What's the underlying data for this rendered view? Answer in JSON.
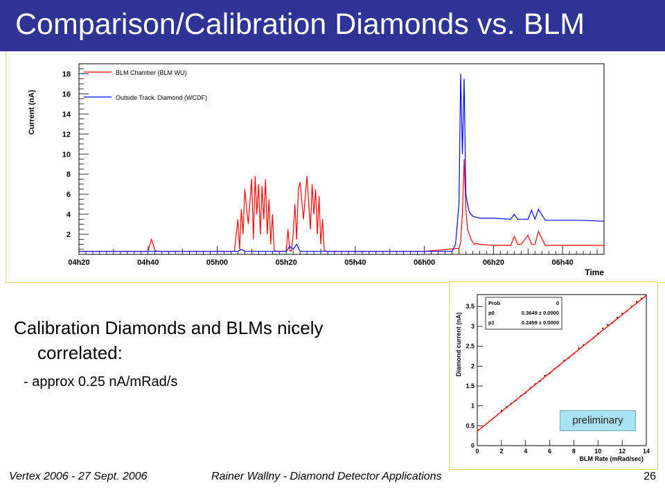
{
  "slide": {
    "title": "Comparison/Calibration Diamonds vs. BLM",
    "body_line1": "Calibration Diamonds and BLMs  nicely",
    "body_line2": "correlated:",
    "sub_item": "-  approx 0.25 nA/mRad/s",
    "preliminary_label": "preliminary",
    "footer_left": "Vertex 2006 - 27 Sept. 2006",
    "footer_center": "Rainer Wallny - Diamond Detector Applications",
    "page_number": "26"
  },
  "chart_data": [
    {
      "type": "line",
      "title": "",
      "xlabel": "Time",
      "ylabel": "Current (nA)",
      "x_ticks": [
        "04h20",
        "04h40",
        "05h00",
        "05h20",
        "05h40",
        "06h00",
        "06h20",
        "06h40"
      ],
      "x_range_minutes": [
        260,
        412
      ],
      "ylim": [
        0,
        19
      ],
      "y_ticks": [
        2,
        4,
        6,
        8,
        10,
        12,
        14,
        16,
        18
      ],
      "legend_position": "top-left",
      "series": [
        {
          "name": "BLM Chamber (BLM WU)",
          "color": "#ff0000",
          "x_minutes": [
            260,
            280,
            281,
            282,
            282.5,
            283,
            300,
            305,
            306,
            306.5,
            307,
            307.5,
            308,
            309,
            310,
            310.5,
            311,
            311.5,
            312,
            312.5,
            313,
            313.5,
            314,
            314.5,
            315,
            315.5,
            316,
            316.5,
            317,
            317.5,
            318,
            319,
            320,
            320.5,
            321,
            321.5,
            322,
            322.5,
            323,
            323.5,
            324,
            325,
            326,
            327,
            327.5,
            328,
            328.5,
            329,
            329.5,
            330,
            330.5,
            331,
            331.5,
            332,
            332.5,
            333,
            334,
            335,
            345,
            360,
            370,
            370.5,
            371,
            371.5,
            372,
            372.5,
            373,
            373.5,
            374,
            374.5,
            375,
            376,
            380,
            385,
            386,
            387,
            388,
            390,
            391,
            392,
            393,
            395,
            400,
            405,
            412
          ],
          "values": [
            0.3,
            0.3,
            1.5,
            0.4,
            0.3,
            0.3,
            0.3,
            0.3,
            3.5,
            0.5,
            4.5,
            2.0,
            6.5,
            3.0,
            7.5,
            1.5,
            7.8,
            4.0,
            7.0,
            2.0,
            6.8,
            3.5,
            7.5,
            2.0,
            5.5,
            1.0,
            4.0,
            0.5,
            0.3,
            0.3,
            0.3,
            0.3,
            0.3,
            2.5,
            0.4,
            0.3,
            2.0,
            5.0,
            1.5,
            6.5,
            7.2,
            3.5,
            7.8,
            2.5,
            7.0,
            4.0,
            6.5,
            2.0,
            5.8,
            1.0,
            3.5,
            0.4,
            0.3,
            0.3,
            0.3,
            0.3,
            0.3,
            0.3,
            0.3,
            0.3,
            0.6,
            1.2,
            4.0,
            9.5,
            4.5,
            2.5,
            2.0,
            1.5,
            1.2,
            1.0,
            1.1,
            1.0,
            0.9,
            0.9,
            1.8,
            1.0,
            1.0,
            1.9,
            1.0,
            1.0,
            2.3,
            0.9,
            0.9,
            0.9,
            0.9
          ]
        },
        {
          "name": "Outside Track. Diamond (WCDF)",
          "color": "#0000ff",
          "x_minutes": [
            260,
            280,
            300,
            306,
            307,
            308,
            310,
            320,
            321,
            322,
            323,
            324,
            330,
            350,
            368,
            369,
            370,
            370.5,
            371,
            371.5,
            372,
            372.5,
            373,
            373.5,
            374,
            375,
            376,
            378,
            380,
            385,
            386,
            387,
            390,
            391,
            392,
            393,
            395,
            400,
            405,
            412
          ],
          "values": [
            0.3,
            0.3,
            0.3,
            0.3,
            0.5,
            0.3,
            0.3,
            0.3,
            0.8,
            0.5,
            1.0,
            0.3,
            0.3,
            0.3,
            0.3,
            1.0,
            5.0,
            18.0,
            10.0,
            17.5,
            6.0,
            5.0,
            4.2,
            4.0,
            3.8,
            3.7,
            3.6,
            3.6,
            3.6,
            3.5,
            4.0,
            3.5,
            3.5,
            4.4,
            3.5,
            4.5,
            3.4,
            3.4,
            3.4,
            3.3
          ]
        }
      ]
    },
    {
      "type": "scatter",
      "title": "",
      "xlabel": "BLM Rate (mRad/sec)",
      "ylabel": "Diamond current (nA)",
      "xlim": [
        0,
        14
      ],
      "ylim": [
        0,
        3.8
      ],
      "x_ticks": [
        "0",
        "2",
        "4",
        "6",
        "8",
        "10",
        "12",
        "14"
      ],
      "y_ticks": [
        "0",
        "0.5",
        "1",
        "1.5",
        "2",
        "2.5",
        "3",
        "3.5"
      ],
      "stats_box": [
        {
          "label": "Prob",
          "value": "0"
        },
        {
          "label": "p0",
          "value": "0.3649 ± 0.0000"
        },
        {
          "label": "p1",
          "value": "0.2459 ± 0.0000"
        }
      ],
      "fit": {
        "p0": 0.3649,
        "p1": 0.2459,
        "x_range": [
          0,
          14
        ],
        "color": "#ff0000"
      },
      "points_x": [
        2.0,
        2.4,
        2.8,
        3.2,
        3.6,
        4.0,
        4.4,
        4.8,
        5.2,
        5.6,
        6.0,
        6.4,
        6.8,
        7.2,
        7.6,
        8.0,
        8.4,
        8.8,
        9.2,
        9.6,
        10.0,
        10.4,
        10.8,
        11.2,
        11.6,
        12.0,
        12.4,
        12.8,
        13.2,
        13.6
      ],
      "points_y": [
        0.88,
        0.97,
        1.06,
        1.14,
        1.25,
        1.33,
        1.45,
        1.55,
        1.62,
        1.76,
        1.82,
        1.93,
        2.02,
        2.14,
        2.21,
        2.31,
        2.45,
        2.53,
        2.61,
        2.7,
        2.82,
        2.95,
        3.04,
        3.09,
        3.22,
        3.32,
        3.39,
        3.5,
        3.62,
        3.7
      ]
    }
  ]
}
